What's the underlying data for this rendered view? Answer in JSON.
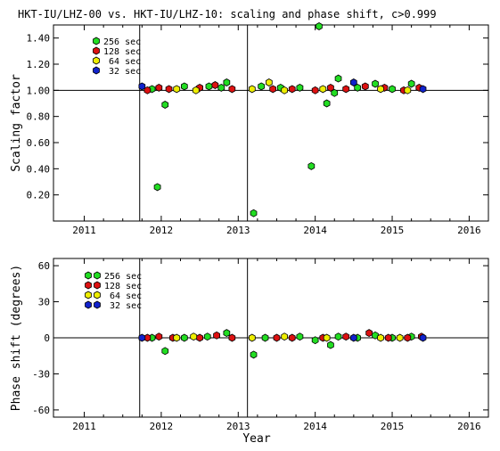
{
  "chart_data": [
    {
      "type": "scatter",
      "title": "HKT-IU/LHZ-00 vs. HKT-IU/LHZ-10: scaling and phase shift, c>0.999",
      "xlabel": "",
      "ylabel": "Scaling factor",
      "xlim": [
        2010.6,
        2016.25
      ],
      "ylim": [
        0.0,
        1.5
      ],
      "x_ticks": [
        "2011",
        "2012",
        "2013",
        "2014",
        "2015",
        "2016"
      ],
      "y_ticks": [
        "0.20",
        "0.40",
        "0.60",
        "0.80",
        "1.00",
        "1.20",
        "1.40"
      ],
      "reference_line": 1.0,
      "vertical_lines": [
        2011.72,
        2013.12
      ],
      "legend_position": "top-left",
      "series": [
        {
          "name": "256 sec",
          "color": "#22dd22",
          "points": [
            [
              2011.88,
              1.01
            ],
            [
              2011.95,
              0.26
            ],
            [
              2012.05,
              0.89
            ],
            [
              2012.3,
              1.03
            ],
            [
              2012.62,
              1.03
            ],
            [
              2012.78,
              1.02
            ],
            [
              2012.85,
              1.06
            ],
            [
              2013.2,
              0.06
            ],
            [
              2013.3,
              1.03
            ],
            [
              2013.55,
              1.02
            ],
            [
              2013.8,
              1.02
            ],
            [
              2013.95,
              0.42
            ],
            [
              2014.05,
              1.49
            ],
            [
              2014.15,
              0.9
            ],
            [
              2014.25,
              0.98
            ],
            [
              2014.3,
              1.09
            ],
            [
              2014.55,
              1.02
            ],
            [
              2014.78,
              1.05
            ],
            [
              2015.0,
              1.01
            ],
            [
              2015.25,
              1.05
            ]
          ]
        },
        {
          "name": "128 sec",
          "color": "#dd1111",
          "points": [
            [
              2011.82,
              1.0
            ],
            [
              2011.97,
              1.02
            ],
            [
              2012.1,
              1.01
            ],
            [
              2012.5,
              1.02
            ],
            [
              2012.7,
              1.04
            ],
            [
              2012.92,
              1.01
            ],
            [
              2013.45,
              1.01
            ],
            [
              2013.7,
              1.01
            ],
            [
              2014.0,
              1.0
            ],
            [
              2014.2,
              1.02
            ],
            [
              2014.4,
              1.01
            ],
            [
              2014.65,
              1.03
            ],
            [
              2014.9,
              1.02
            ],
            [
              2015.15,
              1.0
            ],
            [
              2015.35,
              1.02
            ]
          ]
        },
        {
          "name": "64 sec",
          "color": "#eeee00",
          "points": [
            [
              2012.2,
              1.01
            ],
            [
              2012.45,
              1.0
            ],
            [
              2013.18,
              1.01
            ],
            [
              2013.4,
              1.06
            ],
            [
              2013.6,
              1.0
            ],
            [
              2014.1,
              1.01
            ],
            [
              2014.85,
              1.01
            ],
            [
              2015.2,
              1.0
            ]
          ]
        },
        {
          "name": "32 sec",
          "color": "#1122cc",
          "points": [
            [
              2011.75,
              1.03
            ],
            [
              2014.5,
              1.06
            ],
            [
              2015.4,
              1.01
            ]
          ]
        }
      ]
    },
    {
      "type": "scatter",
      "title": "",
      "xlabel": "Year",
      "ylabel": "Phase shift (degrees)",
      "xlim": [
        2010.6,
        2016.25
      ],
      "ylim": [
        -66,
        66
      ],
      "x_ticks": [
        "2011",
        "2012",
        "2013",
        "2014",
        "2015",
        "2016"
      ],
      "y_ticks": [
        "-60",
        "-30",
        "0",
        "30",
        "60"
      ],
      "reference_line": 0,
      "vertical_lines": [
        2011.72,
        2013.12
      ],
      "legend_position": "top-left",
      "series": [
        {
          "name": "256 sec",
          "color": "#22dd22",
          "points": [
            [
              2011.88,
              0
            ],
            [
              2012.05,
              -11
            ],
            [
              2012.3,
              0
            ],
            [
              2012.6,
              1
            ],
            [
              2012.85,
              4
            ],
            [
              2013.2,
              -14
            ],
            [
              2013.35,
              0
            ],
            [
              2013.8,
              1
            ],
            [
              2014.0,
              -2
            ],
            [
              2014.2,
              -6
            ],
            [
              2014.3,
              1
            ],
            [
              2014.55,
              0
            ],
            [
              2014.78,
              2
            ],
            [
              2015.0,
              0
            ],
            [
              2015.25,
              1
            ]
          ]
        },
        {
          "name": "128 sec",
          "color": "#dd1111",
          "points": [
            [
              2011.82,
              0
            ],
            [
              2011.97,
              1
            ],
            [
              2012.15,
              0
            ],
            [
              2012.5,
              0
            ],
            [
              2012.72,
              2
            ],
            [
              2012.92,
              0
            ],
            [
              2013.5,
              0
            ],
            [
              2013.7,
              0
            ],
            [
              2014.1,
              0
            ],
            [
              2014.4,
              1
            ],
            [
              2014.7,
              4
            ],
            [
              2014.95,
              0
            ],
            [
              2015.2,
              0
            ],
            [
              2015.38,
              1
            ]
          ]
        },
        {
          "name": "64 sec",
          "color": "#eeee00",
          "points": [
            [
              2012.2,
              0
            ],
            [
              2012.42,
              1
            ],
            [
              2013.18,
              0
            ],
            [
              2013.6,
              1
            ],
            [
              2014.15,
              0
            ],
            [
              2014.85,
              0
            ],
            [
              2015.1,
              0
            ]
          ]
        },
        {
          "name": "32 sec",
          "color": "#1122cc",
          "points": [
            [
              2011.75,
              0
            ],
            [
              2014.5,
              0
            ],
            [
              2015.4,
              0
            ]
          ]
        }
      ]
    }
  ]
}
